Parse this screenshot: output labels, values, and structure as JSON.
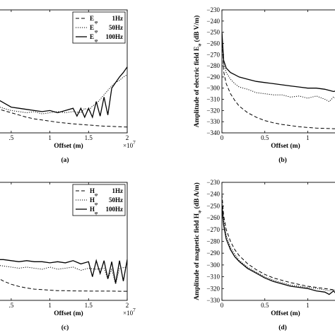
{
  "chart_data": [
    {
      "panel_label": "(a)",
      "type": "line",
      "xlabel": "Offset (m)",
      "ylabel": "",
      "x_multiplier_label": "×10",
      "x_multiplier_exp": "7",
      "xlim": [
        0.3,
        2.0
      ],
      "ylim": [
        -340,
        -230
      ],
      "x_ticks": [
        0.5,
        1,
        1.5,
        2
      ],
      "x_tick_labels": [
        ".5",
        "1",
        "1.5",
        "2"
      ],
      "y_ticks": [],
      "legend": "top-right",
      "series": [
        {
          "name": "E",
          "sub": "φ",
          "freq": "1Hz",
          "style": "dashed",
          "x": [
            0.3,
            0.4,
            0.5,
            0.6,
            0.7,
            0.8,
            0.9,
            1.0,
            1.1,
            1.2,
            1.3,
            1.4,
            1.5,
            1.6,
            1.7,
            1.8,
            1.9,
            2.0
          ],
          "y": [
            -318,
            -320,
            -322,
            -324,
            -326,
            -327.5,
            -328.5,
            -329.5,
            -330.5,
            -331.2,
            -332,
            -332.5,
            -333,
            -333.5,
            -334,
            -334.2,
            -334.5,
            -334.8
          ]
        },
        {
          "name": "E",
          "sub": "φ",
          "freq": "50Hz",
          "style": "dotted",
          "x": [
            0.3,
            0.4,
            0.5,
            0.6,
            0.7,
            0.8,
            0.9,
            1.0,
            1.1,
            1.2,
            1.3,
            1.4,
            1.45,
            1.5,
            1.55,
            1.6,
            1.65,
            1.7,
            1.75,
            1.8,
            1.85,
            1.9,
            1.95,
            2.0
          ],
          "y": [
            -316,
            -318,
            -320,
            -321,
            -322,
            -321,
            -323,
            -322,
            -321,
            -322,
            -321,
            -322,
            -318,
            -320,
            -316,
            -314,
            -310,
            -306,
            -302,
            -298,
            -295,
            -293,
            -290,
            -288
          ]
        },
        {
          "name": "E",
          "sub": "φ",
          "freq": "100Hz",
          "style": "solid",
          "x": [
            0.3,
            0.4,
            0.5,
            0.6,
            0.7,
            0.8,
            0.9,
            1.0,
            1.1,
            1.2,
            1.3,
            1.35,
            1.4,
            1.45,
            1.5,
            1.55,
            1.6,
            1.65,
            1.7,
            1.75,
            1.8,
            1.85,
            1.9,
            1.95,
            2.0
          ],
          "y": [
            -309,
            -313,
            -317,
            -318,
            -319,
            -320,
            -321,
            -320,
            -322,
            -320,
            -318,
            -325,
            -318,
            -326,
            -318,
            -326,
            -312,
            -325,
            -308,
            -324,
            -300,
            -295,
            -290,
            -286,
            -281
          ]
        }
      ]
    },
    {
      "panel_label": "(b)",
      "type": "line",
      "xlabel": "Offset (m)",
      "ylabel": "Amplitude of electric field E",
      "ylabel_sub": "φ",
      "ylabel_unit": " (dB V/m)",
      "xlim": [
        0,
        1.4
      ],
      "ylim": [
        -340,
        -230
      ],
      "x_ticks": [
        0,
        0.5,
        1
      ],
      "x_tick_labels": [
        "0",
        "0.5",
        "1"
      ],
      "y_ticks": [
        -340,
        -330,
        -320,
        -310,
        -300,
        -290,
        -280,
        -270,
        -260,
        -250,
        -240,
        -230
      ],
      "y_tick_labels": [
        "−340",
        "−330",
        "−320",
        "−310",
        "−300",
        "−290",
        "−280",
        "−270",
        "−260",
        "−250",
        "−240",
        "−230"
      ],
      "series": [
        {
          "name": "1Hz",
          "style": "dashed",
          "x": [
            0,
            0.02,
            0.05,
            0.1,
            0.15,
            0.2,
            0.3,
            0.4,
            0.5,
            0.6,
            0.7,
            0.8,
            0.9,
            1.0,
            1.1,
            1.2,
            1.3,
            1.4
          ],
          "y": [
            -250,
            -285,
            -296,
            -305,
            -311,
            -316,
            -322,
            -326,
            -329,
            -331,
            -332.5,
            -333.5,
            -334.5,
            -335.2,
            -335.7,
            -336,
            -336.3,
            -336.5
          ]
        },
        {
          "name": "50Hz",
          "style": "dotted",
          "x": [
            0,
            0.02,
            0.05,
            0.1,
            0.15,
            0.2,
            0.3,
            0.4,
            0.5,
            0.6,
            0.7,
            0.8,
            0.9,
            1.0,
            1.1,
            1.2,
            1.25,
            1.3,
            1.35,
            1.4
          ],
          "y": [
            -250,
            -278,
            -286,
            -292,
            -296,
            -299,
            -301,
            -304,
            -305,
            -306,
            -306,
            -308,
            -307,
            -309,
            -307,
            -310,
            -312,
            -308,
            -310,
            -309
          ]
        },
        {
          "name": "100Hz",
          "style": "solid",
          "x": [
            0,
            0.02,
            0.05,
            0.1,
            0.15,
            0.2,
            0.3,
            0.4,
            0.5,
            0.6,
            0.7,
            0.8,
            0.9,
            1.0,
            1.1,
            1.2,
            1.25,
            1.3,
            1.35,
            1.4
          ],
          "y": [
            -250,
            -275,
            -282,
            -286,
            -288,
            -290,
            -292,
            -294,
            -295,
            -296,
            -297,
            -298,
            -299,
            -300,
            -300,
            -301,
            -302,
            -303,
            -302,
            -303
          ]
        }
      ]
    },
    {
      "panel_label": "(c)",
      "type": "line",
      "xlabel": "Offset (m)",
      "ylabel": "",
      "x_multiplier_label": "×10",
      "x_multiplier_exp": "7",
      "xlim": [
        0.3,
        2.0
      ],
      "ylim": [
        -340,
        -230
      ],
      "x_ticks": [
        0.5,
        1,
        1.5,
        2
      ],
      "x_tick_labels": [
        ".5",
        "1",
        "1.5",
        "2"
      ],
      "y_ticks": [],
      "legend": "top-right",
      "series": [
        {
          "name": "H",
          "sub": "φ",
          "freq": "1Hz",
          "style": "dashed",
          "x": [
            0.3,
            0.4,
            0.5,
            0.6,
            0.7,
            0.8,
            0.9,
            1.0,
            1.1,
            1.2,
            1.3,
            1.4,
            1.5,
            1.6,
            1.7,
            1.8,
            1.9,
            2.0
          ],
          "y": [
            -318,
            -322,
            -325,
            -327,
            -328.5,
            -329.5,
            -330,
            -330.5,
            -331,
            -331,
            -331.2,
            -331.3,
            -331.3,
            -331.4,
            -331.4,
            -331.4,
            -331.5,
            -331.5
          ]
        },
        {
          "name": "H",
          "sub": "φ",
          "freq": "50Hz",
          "style": "dotted",
          "x": [
            0.3,
            0.4,
            0.5,
            0.6,
            0.7,
            0.8,
            0.9,
            1.0,
            1.1,
            1.2,
            1.3,
            1.4,
            1.5,
            1.6,
            1.7,
            1.75,
            1.8,
            1.85,
            1.9,
            2.0
          ],
          "y": [
            -307,
            -308,
            -309,
            -310,
            -309,
            -310,
            -311,
            -309,
            -311,
            -310,
            -309,
            -312,
            -310,
            -311,
            -310,
            -320,
            -311,
            -325,
            -310,
            -309
          ]
        },
        {
          "name": "H",
          "sub": "φ",
          "freq": "100Hz",
          "style": "solid",
          "x": [
            0.3,
            0.4,
            0.5,
            0.6,
            0.7,
            0.8,
            0.9,
            1.0,
            1.1,
            1.2,
            1.3,
            1.4,
            1.5,
            1.55,
            1.6,
            1.65,
            1.7,
            1.75,
            1.8,
            1.85,
            1.9,
            1.95,
            2.0
          ],
          "y": [
            -302,
            -302,
            -303,
            -304,
            -303,
            -304,
            -304,
            -305,
            -304,
            -305,
            -303,
            -306,
            -304,
            -318,
            -303,
            -315,
            -303,
            -320,
            -304,
            -324,
            -303,
            -322,
            -302
          ]
        }
      ]
    },
    {
      "panel_label": "(d)",
      "type": "line",
      "xlabel": "Offset (m)",
      "ylabel": "Amplitude of magnetic field H",
      "ylabel_sub": "φ",
      "ylabel_unit": " (dB A/m)",
      "xlim": [
        0,
        1.4
      ],
      "ylim": [
        -330,
        -230
      ],
      "x_ticks": [
        0,
        0.5,
        1
      ],
      "x_tick_labels": [
        "0",
        "0.5",
        "1"
      ],
      "y_ticks": [
        -330,
        -320,
        -310,
        -300,
        -290,
        -280,
        -270,
        -260,
        -250,
        -240,
        -230
      ],
      "y_tick_labels": [
        "−330",
        "−320",
        "−310",
        "−300",
        "−290",
        "−280",
        "−270",
        "−260",
        "−250",
        "−240",
        "−230"
      ],
      "series": [
        {
          "name": "1Hz",
          "style": "dashed",
          "x": [
            0,
            0.02,
            0.05,
            0.1,
            0.15,
            0.2,
            0.3,
            0.4,
            0.5,
            0.6,
            0.7,
            0.8,
            0.9,
            1.0,
            1.1,
            1.2,
            1.3,
            1.4
          ],
          "y": [
            -240,
            -258,
            -270,
            -280,
            -287,
            -292,
            -299,
            -304,
            -308,
            -311,
            -313,
            -315,
            -316.5,
            -318,
            -319,
            -320,
            -321,
            -322
          ]
        },
        {
          "name": "50Hz",
          "style": "dotted",
          "x": [
            0,
            0.02,
            0.05,
            0.1,
            0.15,
            0.2,
            0.3,
            0.4,
            0.5,
            0.6,
            0.7,
            0.8,
            0.9,
            1.0,
            1.1,
            1.2,
            1.25,
            1.3,
            1.35,
            1.4
          ],
          "y": [
            -245,
            -262,
            -275,
            -285,
            -291,
            -296,
            -302,
            -306,
            -310,
            -313,
            -315,
            -317,
            -318,
            -319,
            -320,
            -321,
            -322,
            -321,
            -323,
            -322
          ]
        },
        {
          "name": "100Hz",
          "style": "solid",
          "x": [
            0,
            0.02,
            0.05,
            0.1,
            0.15,
            0.2,
            0.3,
            0.4,
            0.5,
            0.6,
            0.7,
            0.8,
            0.9,
            1.0,
            1.1,
            1.2,
            1.25,
            1.3,
            1.35,
            1.4
          ],
          "y": [
            -250,
            -266,
            -278,
            -287,
            -293,
            -297,
            -303,
            -307,
            -311,
            -314,
            -316,
            -318,
            -319,
            -320,
            -322,
            -323,
            -325,
            -322,
            -326,
            -324
          ]
        }
      ]
    }
  ]
}
